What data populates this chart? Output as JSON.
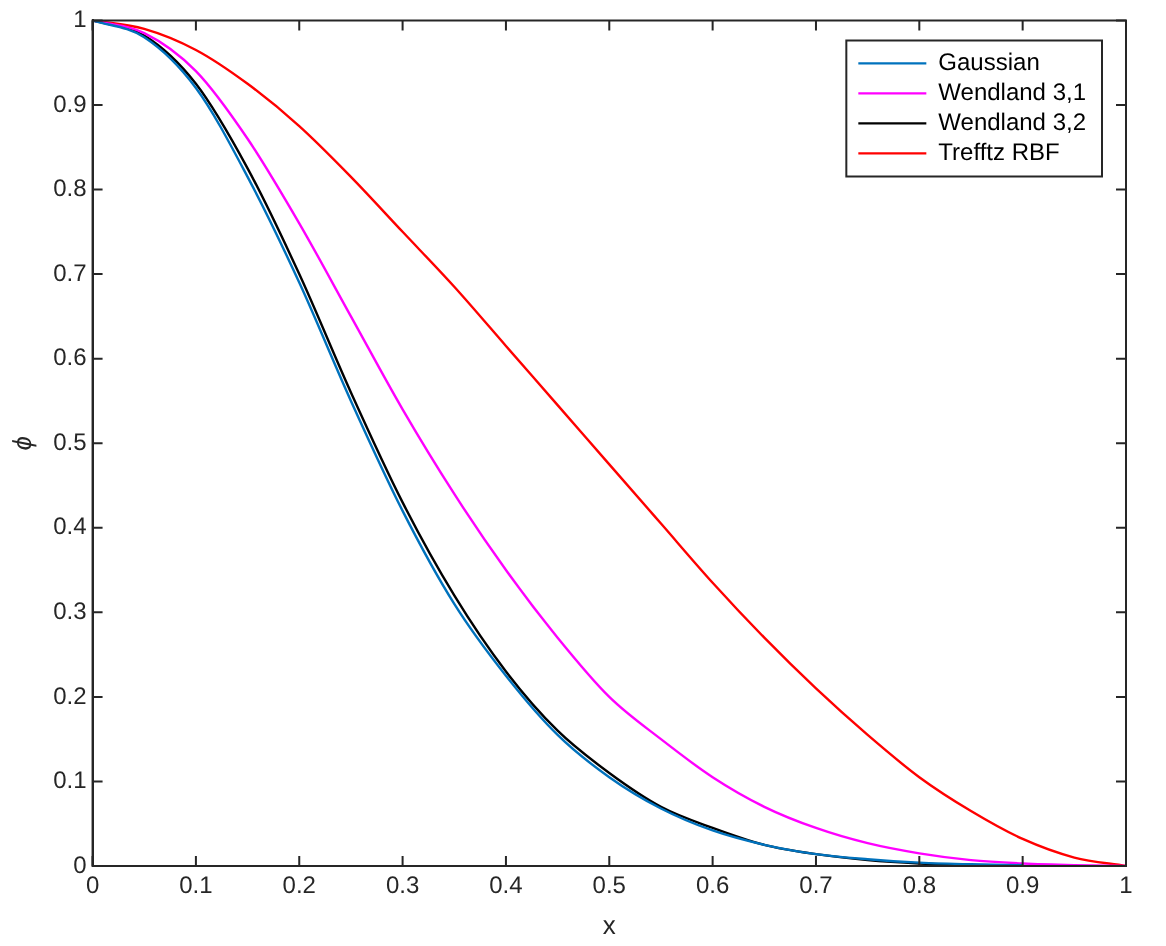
{
  "chart_data": {
    "type": "line",
    "xlabel": "x",
    "ylabel": "ϕ",
    "xlim": [
      0,
      1
    ],
    "ylim": [
      0,
      1
    ],
    "xticks": [
      0,
      0.1,
      0.2,
      0.3,
      0.4,
      0.5,
      0.6,
      0.7,
      0.8,
      0.9,
      1
    ],
    "yticks": [
      0,
      0.1,
      0.2,
      0.3,
      0.4,
      0.5,
      0.6,
      0.7,
      0.8,
      0.9,
      1
    ],
    "grid": false,
    "legend": "top right",
    "marker": "none",
    "x": [
      0,
      0.05,
      0.1,
      0.15,
      0.2,
      0.25,
      0.3,
      0.35,
      0.4,
      0.45,
      0.5,
      0.55,
      0.6,
      0.65,
      0.7,
      0.75,
      0.8,
      0.85,
      0.9,
      0.95,
      1
    ],
    "series": [
      {
        "name": "Gaussian",
        "color": "#0072bd",
        "values": [
          1,
          0.98,
          0.92,
          0.815,
          0.69,
          0.55,
          0.42,
          0.31,
          0.225,
          0.155,
          0.105,
          0.068,
          0.042,
          0.025,
          0.014,
          0.008,
          0.004,
          0.002,
          0.001,
          null,
          null
        ]
      },
      {
        "name": "Wendland 3,1",
        "color": "#ff00ff",
        "values": [
          1,
          0.985,
          0.94,
          0.86,
          0.76,
          0.65,
          0.54,
          0.44,
          0.35,
          0.27,
          0.2,
          0.15,
          0.105,
          0.07,
          0.045,
          0.027,
          0.015,
          0.007,
          0.003,
          0.001,
          0
        ]
      },
      {
        "name": "Wendland 3,2",
        "color": "#000000",
        "values": [
          1,
          0.982,
          0.925,
          0.825,
          0.7,
          0.56,
          0.43,
          0.32,
          0.23,
          0.16,
          0.11,
          0.07,
          0.045,
          0.025,
          0.014,
          0.007,
          0.003,
          0.001,
          null,
          null,
          null
        ]
      },
      {
        "name": "Trefftz RBF",
        "color": "#ff0000",
        "values": [
          1,
          0.99,
          0.965,
          0.925,
          0.875,
          0.815,
          0.75,
          0.685,
          0.615,
          0.545,
          0.475,
          0.405,
          0.335,
          0.27,
          0.21,
          0.155,
          0.105,
          0.065,
          0.032,
          0.01,
          0
        ]
      }
    ]
  }
}
